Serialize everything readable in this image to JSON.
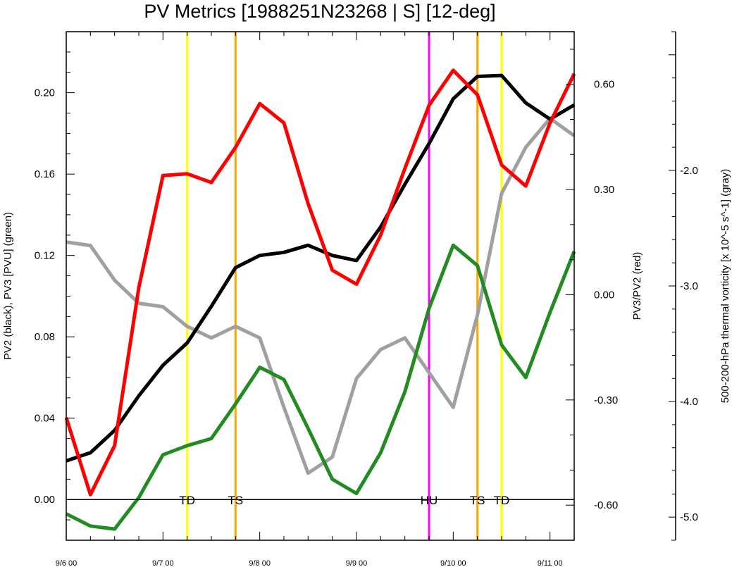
{
  "chart_data": {
    "type": "line",
    "title": "PV Metrics [1988251N23268 | S] [12-deg]",
    "x": [
      "9/6 00",
      "9/6 06",
      "9/6 12",
      "9/6 18",
      "9/7 00",
      "9/7 06",
      "9/7 12",
      "9/7 18",
      "9/8 00",
      "9/8 06",
      "9/8 12",
      "9/8 18",
      "9/9 00",
      "9/9 06",
      "9/9 12",
      "9/9 18",
      "9/10 00",
      "9/10 06",
      "9/10 12",
      "9/10 18",
      "9/11 00",
      "9/11 06"
    ],
    "xticks": [
      "9/6 00",
      "9/7 00",
      "9/8 00",
      "9/9 00",
      "9/10 00",
      "9/11 00"
    ],
    "xlim": [
      0,
      5.25
    ],
    "left_axis": {
      "label": "PV2 (black), PV3 [PVU] (green)",
      "ylim": [
        -0.02,
        0.23
      ],
      "ticks": [
        "0.00",
        "0.04",
        "0.08",
        "0.12",
        "0.16",
        "0.20"
      ]
    },
    "right_axis": {
      "label": "PV3/PV2 (red)",
      "ylim": [
        -0.7,
        0.75
      ],
      "ticks": [
        "-0.60",
        "-0.30",
        "0.00",
        "0.30",
        "0.60"
      ]
    },
    "far_right_axis": {
      "label": "500-200-hPa thermal vorticity [x 10^-5 s^-1] (gray)",
      "ylim": [
        -5.2,
        -0.8
      ],
      "ticks": [
        "-5.0",
        "-4.0",
        "-3.0",
        "-2.0"
      ]
    },
    "series": [
      {
        "name": "PV2",
        "axis": "left",
        "color": "#000000",
        "values": [
          0.019,
          0.023,
          0.034,
          0.051,
          0.066,
          0.077,
          0.095,
          0.114,
          0.12,
          0.1215,
          0.125,
          0.12,
          0.1175,
          0.134,
          0.155,
          0.175,
          0.197,
          0.208,
          0.2085,
          0.195,
          0.187,
          0.194
        ]
      },
      {
        "name": "PV3",
        "axis": "left",
        "color": "#228b22",
        "values": [
          -0.007,
          -0.013,
          -0.0145,
          0.001,
          0.022,
          0.0265,
          0.03,
          0.047,
          0.065,
          0.059,
          0.035,
          0.01,
          0.003,
          0.023,
          0.053,
          0.094,
          0.125,
          0.115,
          0.076,
          0.06,
          0.092,
          0.122
        ]
      },
      {
        "name": "PV3/PV2",
        "axis": "right",
        "color": "#ff0000",
        "values": [
          -0.35,
          -0.57,
          -0.43,
          0.02,
          0.34,
          0.345,
          0.32,
          0.42,
          0.545,
          0.49,
          0.26,
          0.07,
          0.03,
          0.17,
          0.36,
          0.54,
          0.64,
          0.57,
          0.37,
          0.31,
          0.49,
          0.63
        ]
      },
      {
        "name": "thermal vorticity",
        "axis": "far_right",
        "color": "#a0a0a0",
        "values": [
          -2.62,
          -2.65,
          -2.95,
          -3.15,
          -3.18,
          -3.35,
          -3.45,
          -3.35,
          -3.45,
          -4.05,
          -4.62,
          -4.48,
          -3.8,
          -3.55,
          -3.45,
          -3.75,
          -4.05,
          -3.25,
          -2.2,
          -1.8,
          -1.55,
          -1.7
        ]
      }
    ],
    "events": [
      {
        "label": "TD",
        "x": 1.25,
        "color": "#ffff00"
      },
      {
        "label": "TS",
        "x": 1.75,
        "color": "#ffa500"
      },
      {
        "label": "HU",
        "x": 3.75,
        "color": "#ff00ff"
      },
      {
        "label": "TS",
        "x": 4.25,
        "color": "#ffa500"
      },
      {
        "label": "TD",
        "x": 4.5,
        "color": "#ffff00"
      }
    ],
    "zero_line": 0,
    "grid": false
  }
}
